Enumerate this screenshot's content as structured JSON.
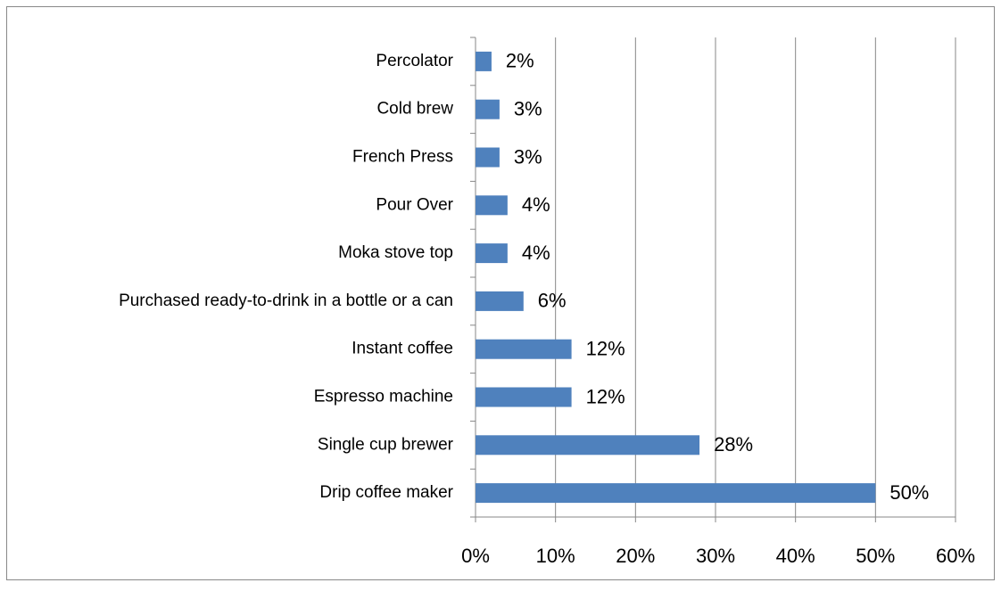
{
  "chart_data": {
    "type": "barh",
    "categories": [
      "Percolator",
      "Cold brew",
      "French Press",
      "Pour Over",
      "Moka stove top",
      "Purchased ready-to-drink in a bottle or a can",
      "Instant coffee",
      "Espresso machine",
      "Single cup brewer",
      "Drip coffee maker"
    ],
    "values": [
      2,
      3,
      3,
      4,
      4,
      6,
      12,
      12,
      28,
      50
    ],
    "value_labels": [
      "2%",
      "3%",
      "3%",
      "4%",
      "4%",
      "6%",
      "12%",
      "12%",
      "28%",
      "50%"
    ],
    "color": "#4f81bd",
    "xlim": [
      0,
      60
    ],
    "xticks": [
      {
        "value": 0,
        "label": "0%"
      },
      {
        "value": 10,
        "label": "10%"
      },
      {
        "value": 20,
        "label": "20%"
      },
      {
        "value": 30,
        "label": "30%"
      },
      {
        "value": 40,
        "label": "40%"
      },
      {
        "value": 50,
        "label": "50%"
      },
      {
        "value": 60,
        "label": "60%"
      }
    ],
    "grid": true
  }
}
